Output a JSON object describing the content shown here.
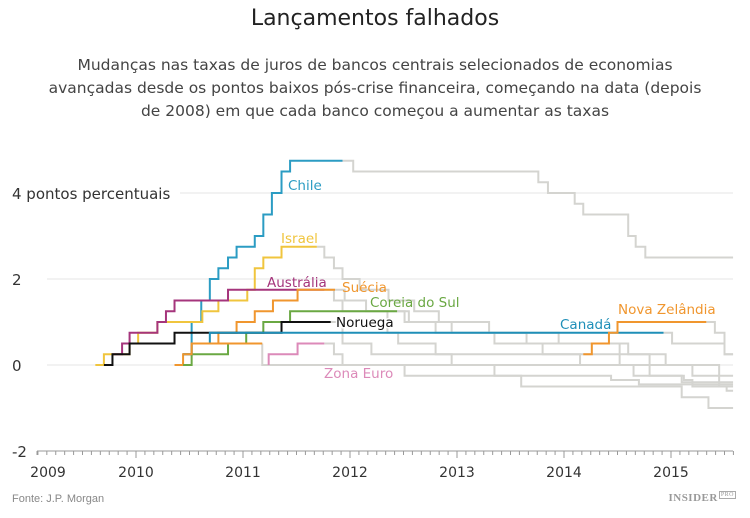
{
  "title": "Lançamentos falhados",
  "subtitle": "Mudanças nas taxas de juros de bancos centrais selecionados de economias avançadas desde os pontos baixos pós-crise financeira, começando na data (depois de 2008) em que cada banco começou a aumentar as taxas",
  "source": "Fonte: J.P. Morgan",
  "logo": {
    "text": "INSIDER",
    "badge": "PRO"
  },
  "chart_data": {
    "type": "line",
    "step": true,
    "title": "Lançamentos falhados",
    "xlabel": "",
    "ylabel": "",
    "xlim": [
      2009.08,
      2015.58
    ],
    "ylim": [
      -2,
      4.9
    ],
    "x_ticks": [
      "2009",
      "2010",
      "2011",
      "2012",
      "2013",
      "2014",
      "2015"
    ],
    "y_ticks": [
      {
        "value": 4,
        "label": "4 pontos percentuais"
      },
      {
        "value": 2,
        "label": "2"
      },
      {
        "value": 0,
        "label": "0"
      },
      {
        "value": -2,
        "label": "-2"
      }
    ],
    "grid": true,
    "continuation_color": "#d4d4d0",
    "series": [
      {
        "name": "Chile",
        "color": "#2b9cc3",
        "points": [
          [
            2010.44,
            0.25
          ],
          [
            2010.52,
            1.0
          ],
          [
            2010.61,
            1.5
          ],
          [
            2010.69,
            2.0
          ],
          [
            2010.77,
            2.25
          ],
          [
            2010.86,
            2.5
          ],
          [
            2010.94,
            2.75
          ],
          [
            2011.11,
            3.0
          ],
          [
            2011.19,
            3.5
          ],
          [
            2011.27,
            4.0
          ],
          [
            2011.36,
            4.5
          ],
          [
            2011.44,
            4.75
          ],
          [
            2011.93,
            4.75
          ]
        ],
        "after": [
          [
            2011.93,
            4.75
          ],
          [
            2012.03,
            4.5
          ],
          [
            2013.76,
            4.25
          ],
          [
            2013.85,
            4.0
          ],
          [
            2014.1,
            3.75
          ],
          [
            2014.18,
            3.5
          ],
          [
            2014.6,
            3.0
          ],
          [
            2014.67,
            2.75
          ],
          [
            2014.76,
            2.5
          ],
          [
            2015.58,
            2.5
          ]
        ]
      },
      {
        "name": "Israel",
        "color": "#f0c53e",
        "points": [
          [
            2009.62,
            0
          ],
          [
            2009.7,
            0.25
          ],
          [
            2009.94,
            0.5
          ],
          [
            2010.02,
            0.75
          ],
          [
            2010.2,
            1.0
          ],
          [
            2010.62,
            1.25
          ],
          [
            2010.77,
            1.5
          ],
          [
            2011.04,
            1.75
          ],
          [
            2011.11,
            2.25
          ],
          [
            2011.19,
            2.5
          ],
          [
            2011.36,
            2.75
          ],
          [
            2011.69,
            2.75
          ]
        ],
        "after": [
          [
            2011.69,
            2.75
          ],
          [
            2011.76,
            2.5
          ],
          [
            2011.85,
            2.25
          ],
          [
            2011.93,
            2.0
          ],
          [
            2012.09,
            1.75
          ],
          [
            2012.36,
            1.5
          ],
          [
            2012.6,
            1.25
          ],
          [
            2012.83,
            1.0
          ],
          [
            2013.3,
            0.75
          ],
          [
            2013.65,
            0.5
          ],
          [
            2013.8,
            0.25
          ],
          [
            2014.15,
            0
          ],
          [
            2014.65,
            -0.25
          ],
          [
            2015.1,
            -0.4
          ],
          [
            2015.58,
            -0.4
          ]
        ]
      },
      {
        "name": "Austrália",
        "color": "#a5357c",
        "points": [
          [
            2009.78,
            0.25
          ],
          [
            2009.87,
            0.5
          ],
          [
            2009.94,
            0.75
          ],
          [
            2010.2,
            1.0
          ],
          [
            2010.28,
            1.25
          ],
          [
            2010.36,
            1.5
          ],
          [
            2010.86,
            1.75
          ],
          [
            2011.76,
            1.75
          ]
        ],
        "after": [
          [
            2011.76,
            1.75
          ],
          [
            2011.85,
            1.5
          ],
          [
            2011.93,
            1.25
          ],
          [
            2012.35,
            0.75
          ],
          [
            2012.45,
            0.5
          ],
          [
            2012.8,
            0.25
          ],
          [
            2012.95,
            0
          ],
          [
            2013.35,
            -0.25
          ],
          [
            2013.6,
            -0.5
          ],
          [
            2015.1,
            -0.75
          ],
          [
            2015.35,
            -1.0
          ],
          [
            2015.58,
            -1.0
          ]
        ]
      },
      {
        "name": "Suécia",
        "color": "#f0962e",
        "points": [
          [
            2010.36,
            0
          ],
          [
            2010.44,
            0.25
          ],
          [
            2010.52,
            0.5
          ],
          [
            2010.77,
            0.75
          ],
          [
            2010.94,
            1.0
          ],
          [
            2011.11,
            1.25
          ],
          [
            2011.28,
            1.5
          ],
          [
            2011.51,
            1.75
          ],
          [
            2011.86,
            1.75
          ]
        ],
        "after": [
          [
            2011.86,
            1.75
          ],
          [
            2011.95,
            1.5
          ],
          [
            2012.15,
            1.25
          ],
          [
            2012.55,
            1.0
          ],
          [
            2012.95,
            0.75
          ],
          [
            2013.95,
            0.5
          ],
          [
            2014.52,
            0
          ],
          [
            2014.8,
            -0.25
          ],
          [
            2015.12,
            -0.35
          ],
          [
            2015.2,
            -0.5
          ],
          [
            2015.52,
            -0.6
          ],
          [
            2015.58,
            -0.6
          ]
        ]
      },
      {
        "name": "Coreia do Sul",
        "color": "#6aa843",
        "points": [
          [
            2010.44,
            0
          ],
          [
            2010.52,
            0.25
          ],
          [
            2010.86,
            0.5
          ],
          [
            2011.03,
            0.75
          ],
          [
            2011.19,
            1.0
          ],
          [
            2011.44,
            1.25
          ],
          [
            2012.44,
            1.25
          ]
        ],
        "after": [
          [
            2012.44,
            1.25
          ],
          [
            2012.51,
            1.0
          ],
          [
            2012.8,
            0.75
          ],
          [
            2013.35,
            0.5
          ],
          [
            2014.6,
            0.25
          ],
          [
            2014.8,
            0
          ],
          [
            2015.2,
            -0.25
          ],
          [
            2015.45,
            -0.5
          ],
          [
            2015.58,
            -0.5
          ]
        ]
      },
      {
        "name": "Noruega",
        "color": "#111111",
        "points": [
          [
            2009.7,
            0
          ],
          [
            2009.78,
            0.25
          ],
          [
            2009.94,
            0.5
          ],
          [
            2010.36,
            0.75
          ],
          [
            2011.36,
            1.0
          ],
          [
            2011.82,
            1.0
          ]
        ],
        "after": [
          [
            2011.82,
            1.0
          ],
          [
            2011.93,
            0.5
          ],
          [
            2012.2,
            0.25
          ],
          [
            2014.95,
            0
          ],
          [
            2015.45,
            -0.25
          ],
          [
            2015.58,
            -0.25
          ]
        ]
      },
      {
        "name": "Canadá",
        "color": "#1f8fb8",
        "points": [
          [
            2010.44,
            0.25
          ],
          [
            2010.52,
            0.5
          ],
          [
            2010.69,
            0.75
          ],
          [
            2014.93,
            0.75
          ]
        ],
        "after": [
          [
            2014.93,
            0.75
          ],
          [
            2015.01,
            0.5
          ],
          [
            2015.5,
            0.25
          ],
          [
            2015.58,
            0.25
          ]
        ]
      },
      {
        "name": "Nova Zelândia",
        "color": "#f0962e",
        "points": [
          [
            2014.18,
            0.25
          ],
          [
            2014.26,
            0.5
          ],
          [
            2014.42,
            0.75
          ],
          [
            2014.5,
            1.0
          ],
          [
            2015.33,
            1.0
          ]
        ],
        "after": [
          [
            2015.33,
            1.0
          ],
          [
            2015.41,
            0.75
          ],
          [
            2015.5,
            0.25
          ],
          [
            2015.58,
            0.25
          ]
        ]
      },
      {
        "name": "",
        "color": "#f0962e",
        "points": [
          [
            2010.44,
            0.25
          ],
          [
            2010.52,
            0.5
          ],
          [
            2011.18,
            0.5
          ]
        ],
        "after": [
          [
            2011.18,
            0.5
          ],
          [
            2011.18,
            0
          ],
          [
            2014.18,
            0
          ]
        ]
      },
      {
        "name": "Zona Euro",
        "color": "#dc8ab9",
        "points": [
          [
            2011.24,
            0
          ],
          [
            2011.24,
            0.25
          ],
          [
            2011.51,
            0.5
          ],
          [
            2011.76,
            0.5
          ]
        ],
        "after": [
          [
            2011.76,
            0.5
          ],
          [
            2011.85,
            0.25
          ],
          [
            2011.93,
            0
          ],
          [
            2012.51,
            -0.25
          ],
          [
            2014.44,
            -0.35
          ],
          [
            2014.7,
            -0.45
          ],
          [
            2015.58,
            -0.45
          ]
        ]
      }
    ]
  }
}
